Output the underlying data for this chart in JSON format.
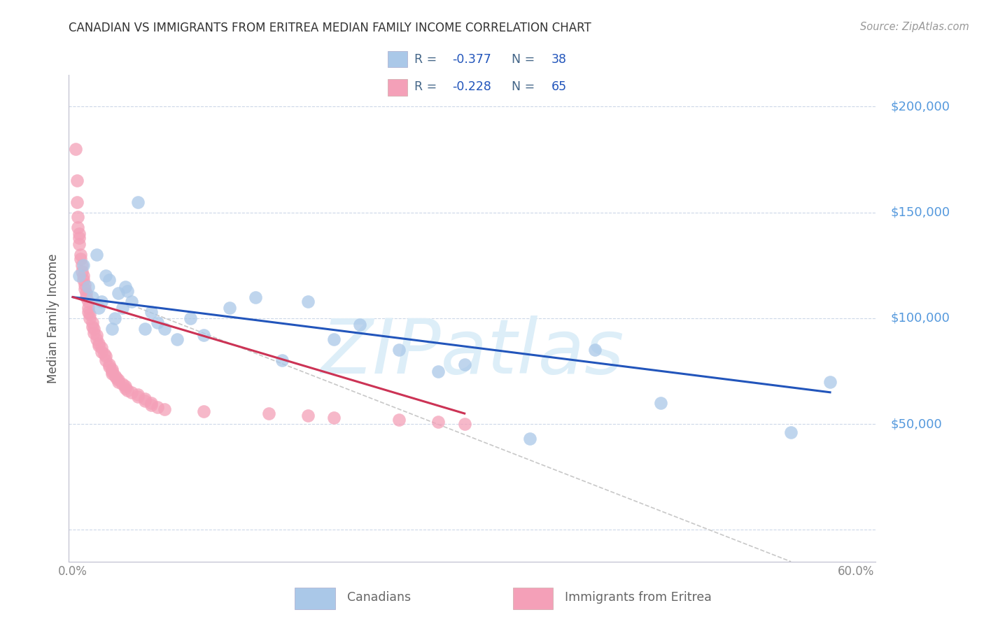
{
  "title": "CANADIAN VS IMMIGRANTS FROM ERITREA MEDIAN FAMILY INCOME CORRELATION CHART",
  "source": "Source: ZipAtlas.com",
  "ylabel": "Median Family Income",
  "xlim": [
    -0.003,
    0.615
  ],
  "ylim": [
    -15000,
    215000
  ],
  "canadians_color": "#aac8e8",
  "eritrea_color": "#f4a0b8",
  "blue_line_color": "#2255bb",
  "pink_line_color": "#cc3355",
  "dashed_line_color": "#c8c8c8",
  "right_axis_color": "#5599dd",
  "label_color": "#6688aa",
  "watermark_color": "#ddeef8",
  "canadians_x": [
    0.005,
    0.008,
    0.012,
    0.015,
    0.018,
    0.02,
    0.022,
    0.025,
    0.028,
    0.03,
    0.032,
    0.035,
    0.038,
    0.04,
    0.042,
    0.045,
    0.05,
    0.055,
    0.06,
    0.065,
    0.07,
    0.08,
    0.09,
    0.1,
    0.12,
    0.14,
    0.16,
    0.18,
    0.2,
    0.22,
    0.25,
    0.28,
    0.3,
    0.35,
    0.4,
    0.45,
    0.55,
    0.58
  ],
  "canadians_y": [
    120000,
    125000,
    115000,
    110000,
    130000,
    105000,
    108000,
    120000,
    118000,
    95000,
    100000,
    112000,
    105000,
    115000,
    113000,
    108000,
    155000,
    95000,
    103000,
    98000,
    95000,
    90000,
    100000,
    92000,
    105000,
    110000,
    80000,
    108000,
    90000,
    97000,
    85000,
    75000,
    78000,
    43000,
    85000,
    60000,
    46000,
    70000
  ],
  "eritrea_x": [
    0.002,
    0.003,
    0.003,
    0.004,
    0.004,
    0.005,
    0.005,
    0.005,
    0.006,
    0.006,
    0.007,
    0.007,
    0.008,
    0.008,
    0.009,
    0.009,
    0.01,
    0.01,
    0.012,
    0.012,
    0.012,
    0.013,
    0.013,
    0.015,
    0.015,
    0.016,
    0.016,
    0.018,
    0.018,
    0.02,
    0.02,
    0.022,
    0.022,
    0.024,
    0.025,
    0.025,
    0.028,
    0.028,
    0.03,
    0.03,
    0.03,
    0.032,
    0.033,
    0.035,
    0.035,
    0.038,
    0.04,
    0.04,
    0.042,
    0.045,
    0.05,
    0.05,
    0.055,
    0.055,
    0.06,
    0.06,
    0.065,
    0.07,
    0.1,
    0.15,
    0.18,
    0.2,
    0.25,
    0.28,
    0.3
  ],
  "eritrea_y": [
    180000,
    165000,
    155000,
    148000,
    143000,
    140000,
    138000,
    135000,
    130000,
    128000,
    125000,
    122000,
    120000,
    118000,
    116000,
    114000,
    112000,
    110000,
    108000,
    105000,
    103000,
    102000,
    100000,
    98000,
    96000,
    95000,
    93000,
    92000,
    90000,
    88000,
    87000,
    86000,
    84000,
    83000,
    82000,
    80000,
    78000,
    77000,
    76000,
    75000,
    74000,
    73000,
    72000,
    71000,
    70000,
    69000,
    68000,
    67000,
    66000,
    65000,
    64000,
    63000,
    62000,
    61000,
    60000,
    59000,
    58000,
    57000,
    56000,
    55000,
    54000,
    53000,
    52000,
    51000,
    50000
  ]
}
